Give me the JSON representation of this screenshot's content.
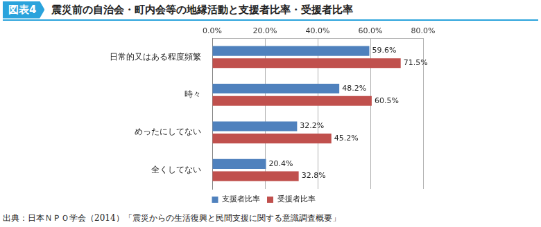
{
  "header": {
    "badge": "図表4",
    "title": "震災前の自治会・町内会等の地縁活動と支援者比率・受援者比率"
  },
  "chart_data": {
    "type": "bar",
    "orientation": "horizontal",
    "categories": [
      "日常的又はある程度頻繁",
      "時々",
      "めったにしてない",
      "全くしてない"
    ],
    "series": [
      {
        "name": "支援者比率",
        "color": "#4f81bd",
        "values": [
          59.6,
          48.2,
          32.2,
          20.4
        ],
        "value_labels": [
          "59.6%",
          "48.2%",
          "32.2%",
          "20.4%"
        ]
      },
      {
        "name": "受援者比率",
        "color": "#c0504d",
        "values": [
          71.5,
          60.5,
          45.2,
          32.8
        ],
        "value_labels": [
          "71.5%",
          "60.5%",
          "45.2%",
          "32.8%"
        ]
      }
    ],
    "xlim": [
      0,
      80
    ],
    "xticks": [
      {
        "value": 0,
        "label": "0.0%"
      },
      {
        "value": 20,
        "label": "20.0%"
      },
      {
        "value": 40,
        "label": "40.0%"
      },
      {
        "value": 60,
        "label": "60.0%"
      },
      {
        "value": 80,
        "label": "80.0%"
      }
    ],
    "grid": true,
    "legend": "bottom",
    "data_labels": true
  },
  "source": "出典：日本ＮＰＯ学会（2014）「震災からの生活復興と民間支援に関する意識調査概要」"
}
